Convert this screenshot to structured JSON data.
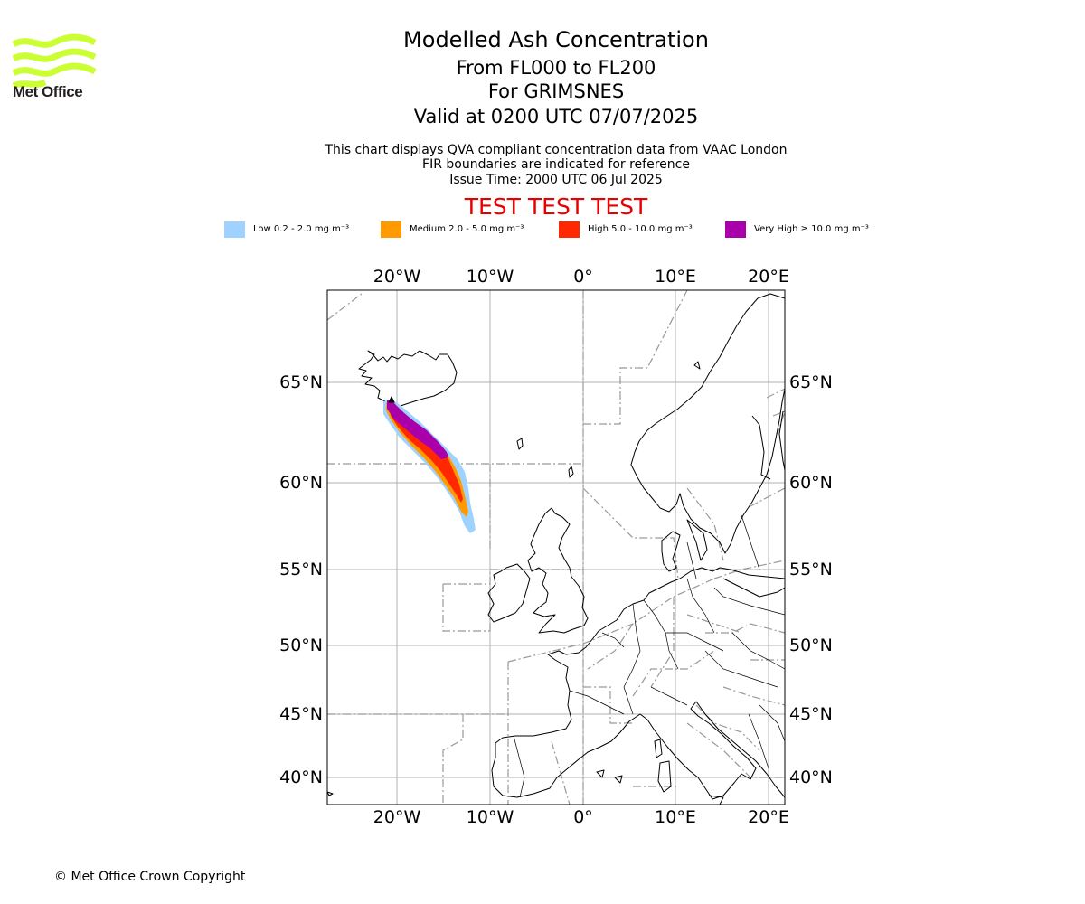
{
  "brand": {
    "name": "Met Office",
    "color": "#ccff33"
  },
  "header": {
    "title": "Modelled Ash Concentration",
    "levels": "From FL000 to FL200",
    "volcano": "For GRIMSNES",
    "valid": "Valid at 0200 UTC 07/07/2025",
    "desc_line1": "This chart displays QVA compliant concentration data from VAAC London",
    "desc_line2": "FIR boundaries are indicated for reference",
    "issue_time": "Issue Time: 2000 UTC 06 Jul 2025",
    "test_banner": "TEST TEST TEST"
  },
  "legend": [
    {
      "label": "Low 0.2 - 2.0 mg m⁻³",
      "color": "#a0d2ff"
    },
    {
      "label": "Medium 2.0 - 5.0 mg m⁻³",
      "color": "#ff9a00"
    },
    {
      "label": "High 5.0 - 10.0 mg m⁻³",
      "color": "#ff2800"
    },
    {
      "label": "Very High ≥ 10.0 mg m⁻³",
      "color": "#aa00aa"
    }
  ],
  "map": {
    "lon_ticks": [
      "20°W",
      "10°W",
      "0°",
      "10°E",
      "20°E"
    ],
    "lat_ticks": [
      "65°N",
      "60°N",
      "55°N",
      "50°N",
      "45°N",
      "40°N"
    ],
    "gridlines": true,
    "fir_boundaries_shown": true,
    "ash_plume": {
      "source": "GRIMSNES",
      "direction": "south-east from Iceland toward ~58°N 12°W",
      "levels_shown": [
        "Low",
        "Medium",
        "High",
        "Very High"
      ]
    }
  },
  "footer": {
    "copyright": "© Met Office Crown Copyright"
  }
}
